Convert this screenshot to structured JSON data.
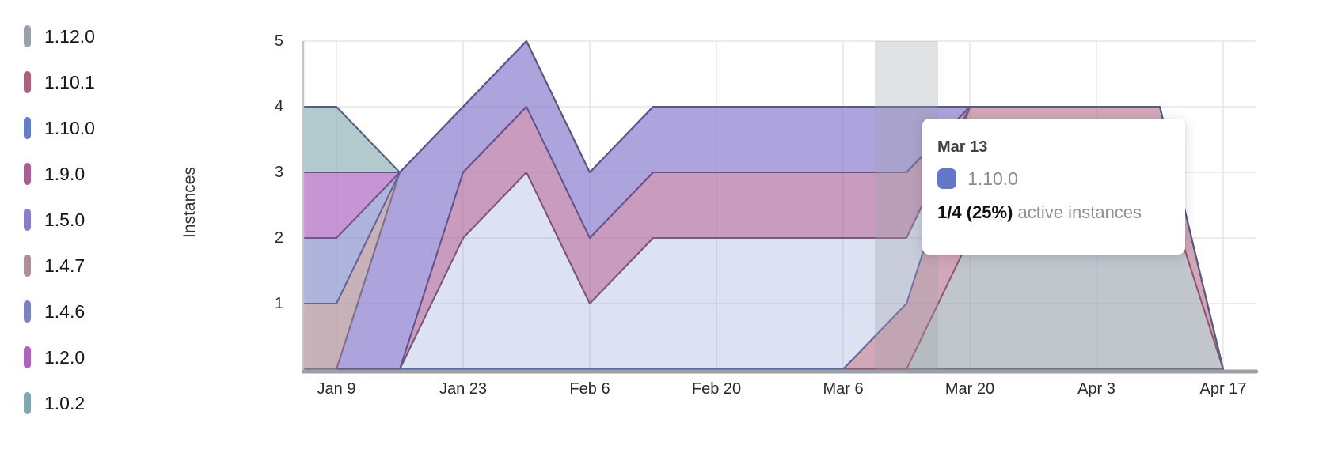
{
  "legend": {
    "items": [
      {
        "label": "1.12.0",
        "color": "#97a0ab"
      },
      {
        "label": "1.10.1",
        "color": "#ae5f7d"
      },
      {
        "label": "1.10.0",
        "color": "#657cc8"
      },
      {
        "label": "1.9.0",
        "color": "#a85f97"
      },
      {
        "label": "1.5.0",
        "color": "#8a7cce"
      },
      {
        "label": "1.4.7",
        "color": "#ad8e99"
      },
      {
        "label": "1.4.6",
        "color": "#7a82c6"
      },
      {
        "label": "1.2.0",
        "color": "#ad63be"
      },
      {
        "label": "1.0.2",
        "color": "#7fa7ad"
      }
    ]
  },
  "tooltip": {
    "title": "Mar 13",
    "series_label": "1.10.0",
    "marker_color": "#6478c8",
    "value": "1/4 (25%)",
    "value_suffix": "active instances"
  },
  "chart_data": {
    "type": "area",
    "stacked": true,
    "title": "",
    "xlabel": "",
    "ylabel": "Instances",
    "ylim": [
      0,
      5
    ],
    "y_ticks": [
      1,
      2,
      3,
      4,
      5
    ],
    "grid": true,
    "legend_position": "left",
    "highlighted_x": "Mar 13",
    "x": [
      "Jan 5",
      "Jan 9",
      "Jan 16",
      "Jan 23",
      "Jan 30",
      "Feb 6",
      "Feb 13",
      "Feb 20",
      "Feb 27",
      "Mar 6",
      "Mar 13",
      "Mar 20",
      "Mar 27",
      "Apr 3",
      "Apr 10",
      "Apr 17"
    ],
    "x_tick_labels": [
      "Jan 9",
      "Jan 23",
      "Feb 6",
      "Feb 20",
      "Mar 6",
      "Mar 20",
      "Apr 3",
      "Apr 17"
    ],
    "series": [
      {
        "name": "1.12.0",
        "color": "#97a0ab",
        "line_color": "#70777f",
        "fill_alpha": 0.6,
        "values": [
          0,
          0,
          0,
          0,
          0,
          0,
          0,
          0,
          0,
          0,
          0,
          2,
          3,
          3,
          3,
          0
        ]
      },
      {
        "name": "1.10.1",
        "color": "#ae5f7d",
        "line_color": "#95556c",
        "fill_alpha": 0.55,
        "values": [
          0,
          0,
          0,
          0,
          0,
          0,
          0,
          0,
          0,
          0,
          1,
          2,
          1,
          1,
          1,
          0
        ]
      },
      {
        "name": "1.10.0",
        "color": "#657cc8",
        "line_color": "#5668a8",
        "fill_alpha": 0.22,
        "values": [
          0,
          0,
          0,
          2,
          3,
          1,
          2,
          2,
          2,
          2,
          1,
          0,
          0,
          0,
          0,
          0
        ]
      },
      {
        "name": "1.9.0",
        "color": "#a85f97",
        "line_color": "#84527a",
        "fill_alpha": 0.62,
        "values": [
          0,
          0,
          0,
          1,
          1,
          1,
          1,
          1,
          1,
          1,
          1,
          0,
          0,
          0,
          0,
          0
        ]
      },
      {
        "name": "1.5.0",
        "color": "#8a7cce",
        "line_color": "#5f5490",
        "fill_alpha": 0.7,
        "values": [
          0,
          0,
          3,
          1,
          1,
          1,
          1,
          1,
          1,
          1,
          1,
          0,
          0,
          0,
          0,
          0
        ]
      },
      {
        "name": "1.4.7",
        "color": "#ad8e99",
        "line_color": "#86707c",
        "fill_alpha": 0.68,
        "values": [
          1,
          1,
          0,
          0,
          0,
          0,
          0,
          0,
          0,
          0,
          0,
          0,
          0,
          0,
          0,
          0
        ]
      },
      {
        "name": "1.4.6",
        "color": "#7a82c6",
        "line_color": "#5d64a0",
        "fill_alpha": 0.6,
        "values": [
          1,
          1,
          0,
          0,
          0,
          0,
          0,
          0,
          0,
          0,
          0,
          0,
          0,
          0,
          0,
          0
        ]
      },
      {
        "name": "1.2.0",
        "color": "#ad63be",
        "line_color": "#7f4f92",
        "fill_alpha": 0.68,
        "values": [
          1,
          1,
          0,
          0,
          0,
          0,
          0,
          0,
          0,
          0,
          0,
          0,
          0,
          0,
          0,
          0
        ]
      },
      {
        "name": "1.0.2",
        "color": "#7fa7ad",
        "line_color": "#555f7d",
        "fill_alpha": 0.6,
        "values": [
          1,
          1,
          0,
          0,
          0,
          0,
          0,
          0,
          0,
          0,
          0,
          0,
          0,
          0,
          0,
          0
        ]
      }
    ]
  },
  "axis_style": {
    "grid_color": "#e5e6e8",
    "axis_line_color": "#c2c6cb",
    "bottom_axis_color": "#9aa0a6",
    "tick_text_color": "#27292c",
    "hover_band_color": "rgba(158,161,167,0.32)"
  }
}
